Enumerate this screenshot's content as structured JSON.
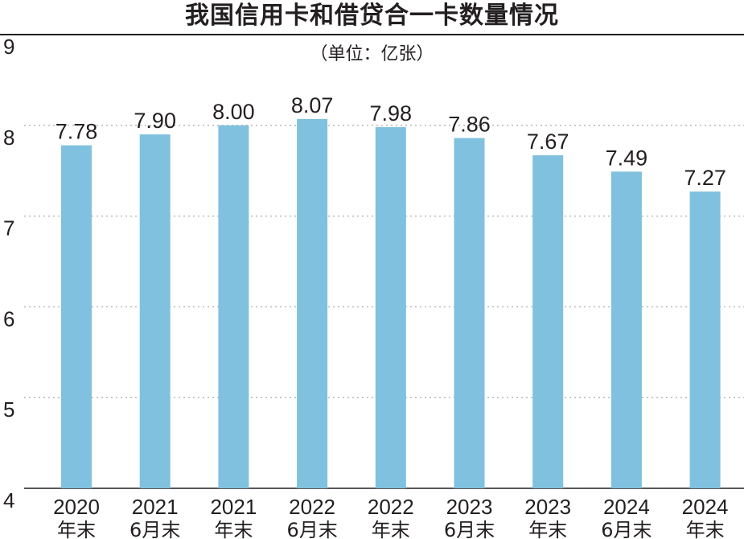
{
  "chart_data": {
    "type": "bar",
    "title": "我国信用卡和借贷合一卡数量情况",
    "unit_label": "（单位：亿张）",
    "categories": [
      [
        "2020",
        "年末"
      ],
      [
        "2021",
        "6月末"
      ],
      [
        "2021",
        "年末"
      ],
      [
        "2022",
        "6月末"
      ],
      [
        "2022",
        "年末"
      ],
      [
        "2023",
        "6月末"
      ],
      [
        "2023",
        "年末"
      ],
      [
        "2024",
        "6月末"
      ],
      [
        "2024",
        "年末"
      ]
    ],
    "values": [
      7.78,
      7.9,
      8.0,
      8.07,
      7.98,
      7.86,
      7.67,
      7.49,
      7.27
    ],
    "value_labels": [
      "7.78",
      "7.90",
      "8.00",
      "8.07",
      "7.98",
      "7.86",
      "7.67",
      "7.49",
      "7.27"
    ],
    "yticks": [
      4,
      5,
      6,
      7,
      8,
      9
    ],
    "ylim": [
      4,
      9
    ],
    "grid": "dotted horizontal",
    "bar_color": "#7fc1de",
    "text_color": "#231f20"
  }
}
